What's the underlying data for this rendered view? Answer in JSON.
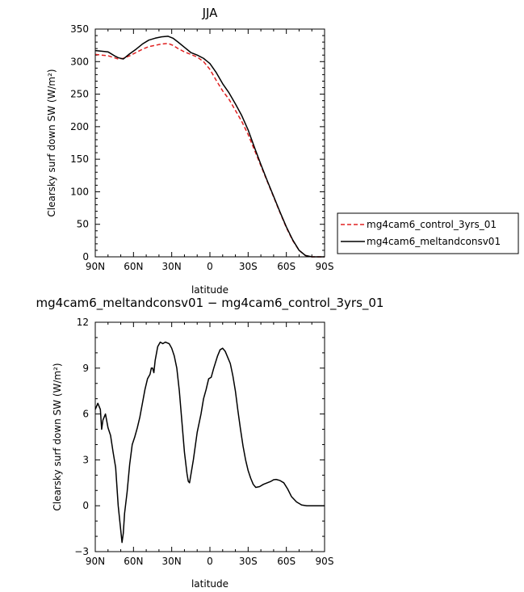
{
  "chart_data": [
    {
      "type": "line",
      "title": "JJA",
      "xlabel": "latitude",
      "ylabel": "Clearsky surf down SW (W/m²)",
      "xticks": [
        "90N",
        "60N",
        "30N",
        "0",
        "30S",
        "60S",
        "90S"
      ],
      "yticks": [
        "0",
        "50",
        "100",
        "150",
        "200",
        "250",
        "300",
        "350"
      ],
      "xlim": [
        90,
        -90
      ],
      "ylim": [
        0,
        350
      ],
      "grid": false,
      "legend": "right",
      "series": [
        {
          "name": "mg4cam6_control_3yrs_01",
          "color": "#e02020",
          "style": "dashed",
          "points": [
            [
              90,
              311
            ],
            [
              85,
              310
            ],
            [
              80,
              309
            ],
            [
              75,
              306
            ],
            [
              72,
              304
            ],
            [
              68,
              305
            ],
            [
              63,
              309
            ],
            [
              58,
              314
            ],
            [
              53,
              319
            ],
            [
              48,
              323
            ],
            [
              43,
              325
            ],
            [
              38,
              327
            ],
            [
              33,
              328
            ],
            [
              29,
              325
            ],
            [
              25,
              320
            ],
            [
              20,
              315
            ],
            [
              15,
              311
            ],
            [
              10,
              307
            ],
            [
              5,
              300
            ],
            [
              0,
              288
            ],
            [
              -5,
              271
            ],
            [
              -10,
              255
            ],
            [
              -15,
              242
            ],
            [
              -20,
              225
            ],
            [
              -25,
              208
            ],
            [
              -30,
              188
            ],
            [
              -35,
              164
            ],
            [
              -40,
              140
            ],
            [
              -45,
              116
            ],
            [
              -50,
              92
            ],
            [
              -55,
              68
            ],
            [
              -60,
              45
            ],
            [
              -65,
              25
            ],
            [
              -70,
              10
            ],
            [
              -75,
              2
            ],
            [
              -80,
              0
            ],
            [
              -85,
              0
            ],
            [
              -90,
              0
            ]
          ]
        },
        {
          "name": "mg4cam6_meltandconsv01",
          "color": "#000000",
          "style": "solid",
          "points": [
            [
              90,
              317
            ],
            [
              85,
              316
            ],
            [
              80,
              315
            ],
            [
              75,
              309
            ],
            [
              72,
              306
            ],
            [
              68,
              304
            ],
            [
              63,
              312
            ],
            [
              58,
              319
            ],
            [
              53,
              327
            ],
            [
              48,
              333
            ],
            [
              43,
              336
            ],
            [
              38,
              338
            ],
            [
              33,
              339
            ],
            [
              29,
              336
            ],
            [
              25,
              330
            ],
            [
              20,
              322
            ],
            [
              15,
              314
            ],
            [
              10,
              310
            ],
            [
              5,
              305
            ],
            [
              0,
              297
            ],
            [
              -5,
              283
            ],
            [
              -10,
              266
            ],
            [
              -15,
              252
            ],
            [
              -20,
              235
            ],
            [
              -25,
              217
            ],
            [
              -30,
              195
            ],
            [
              -35,
              168
            ],
            [
              -40,
              142
            ],
            [
              -45,
              117
            ],
            [
              -50,
              93
            ],
            [
              -55,
              69
            ],
            [
              -60,
              46
            ],
            [
              -65,
              26
            ],
            [
              -70,
              10
            ],
            [
              -75,
              2
            ],
            [
              -80,
              0
            ],
            [
              -85,
              0
            ],
            [
              -90,
              0
            ]
          ]
        }
      ]
    },
    {
      "type": "line",
      "title": "mg4cam6_meltandconsv01 − mg4cam6_control_3yrs_01",
      "xlabel": "latitude",
      "ylabel": "Clearsky surf down SW (W/m²)",
      "xticks": [
        "90N",
        "60N",
        "30N",
        "0",
        "30S",
        "60S",
        "90S"
      ],
      "yticks": [
        "−3",
        "0",
        "3",
        "6",
        "9",
        "12"
      ],
      "xlim": [
        90,
        -90
      ],
      "ylim": [
        -3,
        12
      ],
      "grid": false,
      "series": [
        {
          "color": "#000000",
          "style": "solid",
          "points": [
            [
              90,
              6.3
            ],
            [
              88,
              6.7
            ],
            [
              86,
              6.3
            ],
            [
              85,
              5.0
            ],
            [
              84,
              5.6
            ],
            [
              82,
              6.0
            ],
            [
              80,
              5.1
            ],
            [
              78,
              4.6
            ],
            [
              76,
              3.5
            ],
            [
              74,
              2.5
            ],
            [
              72,
              0.0
            ],
            [
              70,
              -1.6
            ],
            [
              69,
              -2.4
            ],
            [
              68,
              -1.8
            ],
            [
              67,
              -0.5
            ],
            [
              65,
              0.9
            ],
            [
              63,
              2.7
            ],
            [
              61,
              4.0
            ],
            [
              59,
              4.5
            ],
            [
              57,
              5.1
            ],
            [
              55,
              5.8
            ],
            [
              53,
              6.7
            ],
            [
              51,
              7.6
            ],
            [
              49,
              8.3
            ],
            [
              47,
              8.6
            ],
            [
              46,
              9.0
            ],
            [
              45,
              9.0
            ],
            [
              44,
              8.7
            ],
            [
              43,
              9.5
            ],
            [
              41,
              10.4
            ],
            [
              39,
              10.7
            ],
            [
              37,
              10.6
            ],
            [
              35,
              10.7
            ],
            [
              32,
              10.6
            ],
            [
              30,
              10.3
            ],
            [
              28,
              9.8
            ],
            [
              26,
              9.0
            ],
            [
              24,
              7.5
            ],
            [
              22,
              5.5
            ],
            [
              20,
              3.5
            ],
            [
              18,
              2.1
            ],
            [
              17,
              1.6
            ],
            [
              16,
              1.5
            ],
            [
              15,
              2.0
            ],
            [
              13,
              3.0
            ],
            [
              10,
              4.8
            ],
            [
              7,
              6.0
            ],
            [
              5,
              7.0
            ],
            [
              3,
              7.6
            ],
            [
              1,
              8.3
            ],
            [
              -1,
              8.4
            ],
            [
              -3,
              9.0
            ],
            [
              -6,
              9.8
            ],
            [
              -8,
              10.2
            ],
            [
              -10,
              10.3
            ],
            [
              -12,
              10.1
            ],
            [
              -14,
              9.7
            ],
            [
              -16,
              9.3
            ],
            [
              -18,
              8.5
            ],
            [
              -20,
              7.5
            ],
            [
              -22,
              6.2
            ],
            [
              -24,
              5.0
            ],
            [
              -26,
              3.9
            ],
            [
              -28,
              3.0
            ],
            [
              -30,
              2.3
            ],
            [
              -32,
              1.8
            ],
            [
              -34,
              1.4
            ],
            [
              -36,
              1.2
            ],
            [
              -39,
              1.25
            ],
            [
              -42,
              1.4
            ],
            [
              -45,
              1.5
            ],
            [
              -48,
              1.6
            ],
            [
              -50,
              1.7
            ],
            [
              -52,
              1.72
            ],
            [
              -55,
              1.65
            ],
            [
              -58,
              1.5
            ],
            [
              -61,
              1.1
            ],
            [
              -64,
              0.6
            ],
            [
              -68,
              0.25
            ],
            [
              -72,
              0.05
            ],
            [
              -76,
              0.0
            ],
            [
              -80,
              0.0
            ],
            [
              -85,
              0.0
            ],
            [
              -90,
              0.0
            ]
          ]
        }
      ]
    }
  ]
}
